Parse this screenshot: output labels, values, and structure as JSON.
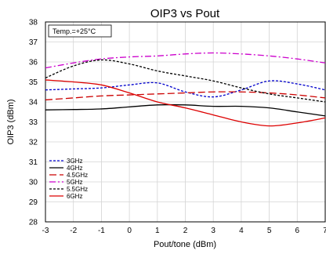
{
  "chart_data": {
    "type": "line",
    "title": "OIP3 vs Pout",
    "xlabel": "Pout/tone (dBm)",
    "ylabel": "OIP3 (dBm)",
    "annotation": "Temp.=+25°C",
    "xlim": [
      -3,
      7
    ],
    "ylim": [
      28,
      38
    ],
    "xticks": [
      "-3",
      "-2",
      "-1",
      "0",
      "1",
      "2",
      "3",
      "4",
      "5",
      "6",
      "7"
    ],
    "yticks": [
      "28",
      "29",
      "30",
      "31",
      "32",
      "33",
      "34",
      "35",
      "36",
      "37",
      "38"
    ],
    "grid": true,
    "legend_position": "bottom-left",
    "series": [
      {
        "name": "3GHz",
        "color": "#0000cc",
        "dash": "3,2",
        "x": [
          -3,
          -2,
          -1,
          0,
          1,
          2,
          3,
          4,
          5,
          6,
          7
        ],
        "y": [
          34.6,
          34.65,
          34.7,
          34.85,
          34.95,
          34.5,
          34.25,
          34.6,
          35.05,
          34.9,
          34.6
        ]
      },
      {
        "name": "4GHz",
        "color": "#000000",
        "dash": "",
        "x": [
          -3,
          -2,
          -1,
          0,
          1,
          2,
          3,
          4,
          5,
          6,
          7
        ],
        "y": [
          33.6,
          33.62,
          33.65,
          33.75,
          33.85,
          33.85,
          33.78,
          33.78,
          33.7,
          33.5,
          33.3
        ]
      },
      {
        "name": "4.5GHz",
        "color": "#cc0000",
        "dash": "9,4",
        "x": [
          -3,
          -2,
          -1,
          0,
          1,
          2,
          3,
          4,
          5,
          6,
          7
        ],
        "y": [
          34.1,
          34.2,
          34.3,
          34.35,
          34.4,
          34.45,
          34.5,
          34.5,
          34.45,
          34.35,
          34.2
        ]
      },
      {
        "name": "5GHz",
        "color": "#cc00cc",
        "dash": "8,3,2,3",
        "x": [
          -3,
          -2,
          -1,
          0,
          1,
          2,
          3,
          4,
          5,
          6,
          7
        ],
        "y": [
          35.7,
          35.95,
          36.15,
          36.25,
          36.3,
          36.4,
          36.45,
          36.4,
          36.3,
          36.15,
          35.95
        ]
      },
      {
        "name": "5.5GHz",
        "color": "#000000",
        "dash": "3,2",
        "x": [
          -3,
          -2,
          -1,
          0,
          1,
          2,
          3,
          4,
          5,
          6,
          7
        ],
        "y": [
          35.2,
          35.8,
          36.1,
          35.9,
          35.55,
          35.3,
          35.05,
          34.7,
          34.4,
          34.2,
          34.0
        ]
      },
      {
        "name": "6GHz",
        "color": "#dd0000",
        "dash": "",
        "x": [
          -3,
          -2,
          -1,
          0,
          1,
          2,
          3,
          4,
          5,
          6,
          7
        ],
        "y": [
          35.1,
          35.0,
          34.85,
          34.45,
          34.0,
          33.7,
          33.35,
          33.0,
          32.8,
          32.95,
          33.2
        ]
      }
    ]
  }
}
